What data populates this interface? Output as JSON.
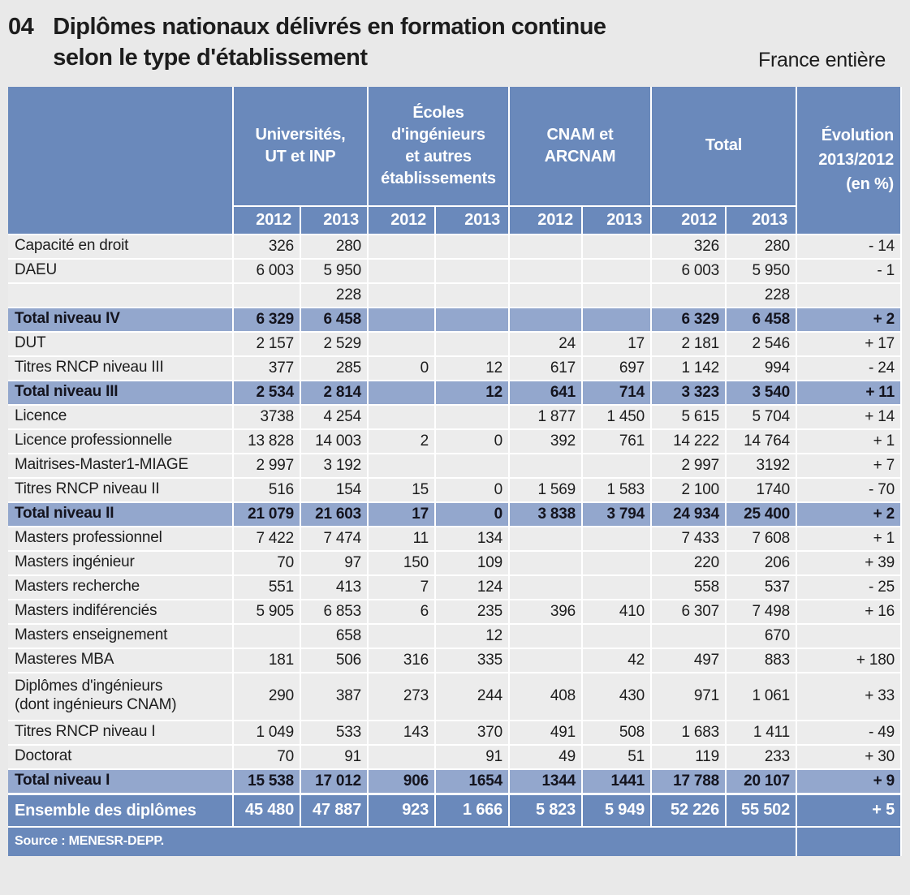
{
  "page": {
    "number": "04",
    "title": "Diplômes nationaux délivrés en formation continue\nselon le type d'établissement",
    "region": "France entière"
  },
  "colors": {
    "header_blue": "#6a89bb",
    "subtotal_blue": "#93a7cd",
    "row_gray": "#ececec",
    "page_background": "#e9e9e9",
    "text": "#1d1d1d"
  },
  "table": {
    "groups": [
      {
        "label": "Universités,\nUT et INP",
        "years": [
          "2012",
          "2013"
        ]
      },
      {
        "label": "Écoles\nd'ingénieurs\net autres\nétablissements",
        "years": [
          "2012",
          "2013"
        ]
      },
      {
        "label": "CNAM et\nARCNAM",
        "years": [
          "2012",
          "2013"
        ]
      },
      {
        "label": "Total",
        "years": [
          "2012",
          "2013"
        ]
      }
    ],
    "evolution_header": "Évolution\n2013/2012\n(en %)",
    "rows": [
      {
        "label": "Capacité en droit",
        "type": "data",
        "values": [
          "326",
          "280",
          "",
          "",
          "",
          "",
          "326",
          "280",
          "- 14"
        ]
      },
      {
        "label": "DAEU",
        "type": "data",
        "values": [
          "6 003",
          "5 950",
          "",
          "",
          "",
          "",
          "6 003",
          "5 950",
          "- 1"
        ]
      },
      {
        "label": "",
        "type": "data",
        "values": [
          "",
          "228",
          "",
          "",
          "",
          "",
          "",
          "228",
          ""
        ]
      },
      {
        "label": "Total niveau IV",
        "type": "total",
        "values": [
          "6 329",
          "6 458",
          "",
          "",
          "",
          "",
          "6 329",
          "6 458",
          "+ 2"
        ]
      },
      {
        "label": "DUT",
        "type": "data",
        "values": [
          "2 157",
          "2 529",
          "",
          "",
          "24",
          "17",
          "2 181",
          "2 546",
          "+ 17"
        ]
      },
      {
        "label": "Titres RNCP niveau III",
        "type": "data",
        "values": [
          "377",
          "285",
          "0",
          "12",
          "617",
          "697",
          "1 142",
          "994",
          "- 24"
        ]
      },
      {
        "label": "Total niveau III",
        "type": "total",
        "values": [
          "2 534",
          "2 814",
          "",
          "12",
          "641",
          "714",
          "3 323",
          "3 540",
          "+ 11"
        ]
      },
      {
        "label": "Licence",
        "type": "data",
        "values": [
          "3738",
          "4 254",
          "",
          "",
          "1 877",
          "1 450",
          "5 615",
          "5 704",
          "+ 14"
        ]
      },
      {
        "label": "Licence professionnelle",
        "type": "data",
        "values": [
          "13 828",
          "14 003",
          "2",
          "0",
          "392",
          "761",
          "14 222",
          "14 764",
          "+ 1"
        ]
      },
      {
        "label": "Maitrises-Master1-MIAGE",
        "type": "data",
        "values": [
          "2 997",
          "3 192",
          "",
          "",
          "",
          "",
          "2 997",
          "3192",
          "+ 7"
        ]
      },
      {
        "label": "Titres RNCP niveau II",
        "type": "data",
        "values": [
          "516",
          "154",
          "15",
          "0",
          "1 569",
          "1 583",
          "2 100",
          "1740",
          "- 70"
        ]
      },
      {
        "label": "Total niveau II",
        "type": "total",
        "values": [
          "21 079",
          "21 603",
          "17",
          "0",
          "3 838",
          "3 794",
          "24 934",
          "25 400",
          "+ 2"
        ]
      },
      {
        "label": "Masters professionnel",
        "type": "data",
        "values": [
          "7 422",
          "7 474",
          "11",
          "134",
          "",
          "",
          "7 433",
          "7 608",
          "+ 1"
        ]
      },
      {
        "label": "Masters ingénieur",
        "type": "data",
        "values": [
          "70",
          "97",
          "150",
          "109",
          "",
          "",
          "220",
          "206",
          "+ 39"
        ]
      },
      {
        "label": "Masters recherche",
        "type": "data",
        "values": [
          "551",
          "413",
          "7",
          "124",
          "",
          "",
          "558",
          "537",
          "- 25"
        ]
      },
      {
        "label": "Masters indiférenciés",
        "type": "data",
        "values": [
          "5 905",
          "6 853",
          "6",
          "235",
          "396",
          "410",
          "6 307",
          "7 498",
          "+ 16"
        ]
      },
      {
        "label": "Masters enseignement",
        "type": "data",
        "values": [
          "",
          "658",
          "",
          "12",
          "",
          "",
          "",
          "670",
          ""
        ]
      },
      {
        "label": "Masteres MBA",
        "type": "data",
        "values": [
          "181",
          "506",
          "316",
          "335",
          "",
          "42",
          "497",
          "883",
          "+ 180"
        ]
      },
      {
        "label": "Diplômes d'ingénieurs\n(dont ingénieurs CNAM)",
        "type": "data",
        "tall": true,
        "values": [
          "290",
          "387",
          "273",
          "244",
          "408",
          "430",
          "971",
          "1 061",
          "+ 33"
        ]
      },
      {
        "label": "Titres RNCP niveau I",
        "type": "data",
        "values": [
          "1 049",
          "533",
          "143",
          "370",
          "491",
          "508",
          "1 683",
          "1 411",
          "- 49"
        ]
      },
      {
        "label": "Doctorat",
        "type": "data",
        "values": [
          "70",
          "91",
          "",
          "91",
          "49",
          "51",
          "119",
          "233",
          "+ 30"
        ]
      },
      {
        "label": "Total niveau I",
        "type": "total",
        "values": [
          "15 538",
          "17 012",
          "906",
          "1654",
          "1344",
          "1441",
          "17 788",
          "20 107",
          "+ 9"
        ]
      },
      {
        "label": "Ensemble des diplômes",
        "type": "grand",
        "values": [
          "45 480",
          "47 887",
          "923",
          "1 666",
          "5 823",
          "5 949",
          "52 226",
          "55 502",
          "+ 5"
        ]
      }
    ],
    "source": "Source : MENESR-DEPP."
  }
}
